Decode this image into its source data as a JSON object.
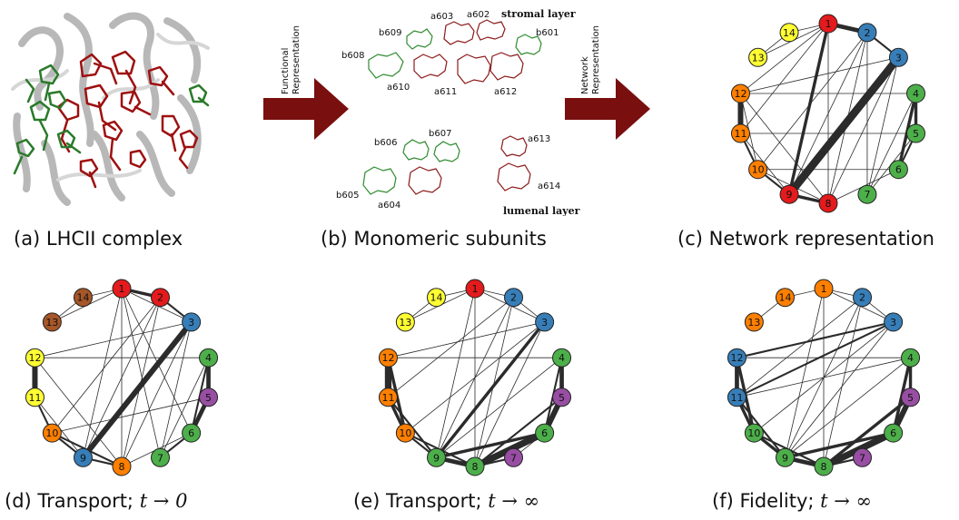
{
  "captions": {
    "a": "(a) LHCII complex",
    "b": "(b) Monomeric subunits",
    "c": "(c) Network representation",
    "d_prefix": "(d) Transport; ",
    "d_math": "t → 0",
    "e_prefix": "(e) Transport; ",
    "e_math": "t → ∞",
    "f_prefix": "(f) Fidelity; ",
    "f_math": "t → ∞"
  },
  "arrows": {
    "first": [
      "Functional",
      "Representation"
    ],
    "second": [
      "Network",
      "Representation"
    ],
    "color": "#7a0f0f"
  },
  "subunits": {
    "stromal_label": "stromal layer",
    "lumenal_label": "lumenal layer",
    "labels": {
      "a603": "a603",
      "a602": "a602",
      "b609": "b609",
      "b601": "b601",
      "b608": "b608",
      "a610": "a610",
      "a611": "a611",
      "a612": "a612",
      "b607": "b607",
      "b606": "b606",
      "a613": "a613",
      "a614": "a614",
      "b605": "b605",
      "a604": "a604"
    },
    "chl_a_color": "#8b1a1a",
    "chl_b_color": "#2e8b2e"
  },
  "palette": {
    "red": "#e41a1c",
    "blue": "#377eb8",
    "green": "#4daf4a",
    "purple": "#984ea3",
    "orange": "#ff7f00",
    "yellow": "#ffff33",
    "brown": "#a65628"
  },
  "nodes": [
    "1",
    "2",
    "3",
    "4",
    "5",
    "6",
    "7",
    "8",
    "9",
    "10",
    "11",
    "12",
    "13",
    "14"
  ],
  "networks": {
    "c": {
      "colors": [
        "red",
        "blue",
        "blue",
        "green",
        "green",
        "green",
        "green",
        "red",
        "red",
        "orange",
        "orange",
        "orange",
        "yellow",
        "yellow"
      ],
      "edges": [
        [
          1,
          2,
          4
        ],
        [
          2,
          3,
          2
        ],
        [
          1,
          9,
          3
        ],
        [
          1,
          8,
          1
        ],
        [
          2,
          8,
          1
        ],
        [
          2,
          9,
          1
        ],
        [
          2,
          7,
          1
        ],
        [
          3,
          8,
          1
        ],
        [
          3,
          9,
          7
        ],
        [
          3,
          7,
          1
        ],
        [
          3,
          12,
          1
        ],
        [
          4,
          5,
          3
        ],
        [
          4,
          6,
          3
        ],
        [
          5,
          6,
          2
        ],
        [
          4,
          7,
          1
        ],
        [
          5,
          7,
          1
        ],
        [
          4,
          12,
          1
        ],
        [
          5,
          11,
          1
        ],
        [
          6,
          8,
          1
        ],
        [
          8,
          9,
          3
        ],
        [
          8,
          10,
          1
        ],
        [
          9,
          10,
          2
        ],
        [
          9,
          11,
          1
        ],
        [
          10,
          11,
          2
        ],
        [
          11,
          12,
          5
        ],
        [
          10,
          12,
          1
        ],
        [
          1,
          13,
          1
        ],
        [
          1,
          14,
          1
        ],
        [
          1,
          11,
          1
        ],
        [
          1,
          12,
          1
        ],
        [
          13,
          14,
          1
        ],
        [
          2,
          10,
          1
        ],
        [
          12,
          8,
          1
        ],
        [
          6,
          10,
          1
        ]
      ]
    },
    "d": {
      "colors": [
        "red",
        "red",
        "blue",
        "green",
        "purple",
        "green",
        "green",
        "orange",
        "blue",
        "orange",
        "yellow",
        "yellow",
        "brown",
        "brown"
      ],
      "edges": [
        [
          1,
          2,
          3
        ],
        [
          2,
          3,
          2
        ],
        [
          1,
          3,
          1
        ],
        [
          1,
          9,
          1
        ],
        [
          1,
          8,
          1
        ],
        [
          1,
          7,
          1
        ],
        [
          1,
          6,
          1
        ],
        [
          2,
          8,
          1
        ],
        [
          2,
          10,
          1
        ],
        [
          2,
          9,
          1
        ],
        [
          3,
          9,
          5
        ],
        [
          3,
          8,
          1
        ],
        [
          3,
          7,
          1
        ],
        [
          3,
          12,
          1
        ],
        [
          4,
          5,
          4
        ],
        [
          5,
          6,
          4
        ],
        [
          4,
          6,
          2
        ],
        [
          4,
          7,
          1
        ],
        [
          4,
          12,
          1
        ],
        [
          5,
          10,
          1
        ],
        [
          6,
          7,
          2
        ],
        [
          6,
          8,
          1
        ],
        [
          8,
          9,
          2
        ],
        [
          8,
          10,
          2
        ],
        [
          9,
          10,
          2
        ],
        [
          10,
          11,
          2
        ],
        [
          11,
          12,
          5
        ],
        [
          9,
          11,
          1
        ],
        [
          1,
          13,
          1
        ],
        [
          13,
          14,
          1
        ],
        [
          1,
          14,
          1
        ],
        [
          12,
          8,
          1
        ]
      ]
    },
    "e": {
      "colors": [
        "red",
        "blue",
        "blue",
        "green",
        "purple",
        "green",
        "purple",
        "green",
        "green",
        "orange",
        "orange",
        "orange",
        "yellow",
        "yellow"
      ],
      "edges": [
        [
          1,
          2,
          1
        ],
        [
          2,
          3,
          1
        ],
        [
          1,
          3,
          1
        ],
        [
          1,
          9,
          1
        ],
        [
          1,
          8,
          1
        ],
        [
          2,
          8,
          1
        ],
        [
          2,
          9,
          1
        ],
        [
          3,
          9,
          3
        ],
        [
          3,
          8,
          1
        ],
        [
          3,
          10,
          1
        ],
        [
          3,
          12,
          1
        ],
        [
          4,
          5,
          4
        ],
        [
          5,
          6,
          5
        ],
        [
          4,
          6,
          2
        ],
        [
          6,
          8,
          6
        ],
        [
          5,
          8,
          2
        ],
        [
          6,
          9,
          3
        ],
        [
          8,
          9,
          4
        ],
        [
          7,
          8,
          2
        ],
        [
          8,
          10,
          2
        ],
        [
          9,
          10,
          2
        ],
        [
          10,
          11,
          3
        ],
        [
          11,
          12,
          6
        ],
        [
          10,
          12,
          3
        ],
        [
          9,
          11,
          2
        ],
        [
          4,
          12,
          1
        ],
        [
          1,
          14,
          1
        ],
        [
          13,
          14,
          1
        ],
        [
          1,
          13,
          1
        ],
        [
          2,
          11,
          1
        ],
        [
          4,
          9,
          1
        ],
        [
          7,
          6,
          1
        ]
      ]
    },
    "f": {
      "colors": [
        "orange",
        "blue",
        "blue",
        "green",
        "purple",
        "green",
        "purple",
        "green",
        "green",
        "green",
        "blue",
        "blue",
        "orange",
        "orange"
      ],
      "edges": [
        [
          1,
          2,
          1
        ],
        [
          2,
          3,
          1
        ],
        [
          1,
          3,
          1
        ],
        [
          1,
          9,
          1
        ],
        [
          1,
          8,
          1
        ],
        [
          2,
          8,
          1
        ],
        [
          2,
          9,
          1
        ],
        [
          3,
          9,
          1
        ],
        [
          3,
          11,
          2
        ],
        [
          3,
          12,
          2
        ],
        [
          4,
          5,
          3
        ],
        [
          5,
          6,
          5
        ],
        [
          4,
          6,
          3
        ],
        [
          6,
          8,
          6
        ],
        [
          5,
          8,
          3
        ],
        [
          6,
          9,
          3
        ],
        [
          8,
          9,
          4
        ],
        [
          7,
          8,
          2
        ],
        [
          8,
          10,
          2
        ],
        [
          9,
          10,
          3
        ],
        [
          10,
          11,
          3
        ],
        [
          11,
          12,
          4
        ],
        [
          10,
          12,
          3
        ],
        [
          9,
          11,
          2
        ],
        [
          4,
          12,
          1
        ],
        [
          4,
          11,
          1
        ],
        [
          1,
          14,
          1
        ],
        [
          13,
          14,
          1
        ],
        [
          2,
          11,
          1
        ],
        [
          3,
          10,
          1
        ],
        [
          4,
          9,
          1
        ]
      ]
    }
  }
}
